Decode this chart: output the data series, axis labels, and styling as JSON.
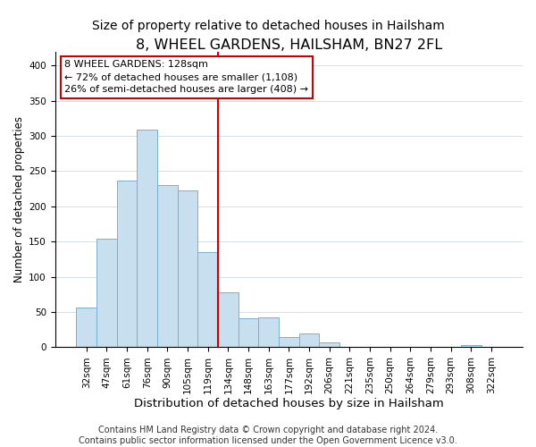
{
  "title": "8, WHEEL GARDENS, HAILSHAM, BN27 2FL",
  "subtitle": "Size of property relative to detached houses in Hailsham",
  "xlabel": "Distribution of detached houses by size in Hailsham",
  "ylabel": "Number of detached properties",
  "bar_labels": [
    "32sqm",
    "47sqm",
    "61sqm",
    "76sqm",
    "90sqm",
    "105sqm",
    "119sqm",
    "134sqm",
    "148sqm",
    "163sqm",
    "177sqm",
    "192sqm",
    "206sqm",
    "221sqm",
    "235sqm",
    "250sqm",
    "264sqm",
    "279sqm",
    "293sqm",
    "308sqm",
    "322sqm"
  ],
  "bar_heights": [
    57,
    154,
    237,
    309,
    230,
    223,
    135,
    78,
    41,
    42,
    14,
    20,
    7,
    0,
    0,
    0,
    0,
    0,
    0,
    3,
    0
  ],
  "bar_color": "#c8dff0",
  "bar_edge_color": "#7ab0d0",
  "vline_color": "#cc0000",
  "annotation_title": "8 WHEEL GARDENS: 128sqm",
  "annotation_line1": "← 72% of detached houses are smaller (1,108)",
  "annotation_line2": "26% of semi-detached houses are larger (408) →",
  "annotation_box_edge": "#cc0000",
  "ylim": [
    0,
    420
  ],
  "yticks": [
    0,
    50,
    100,
    150,
    200,
    250,
    300,
    350,
    400
  ],
  "footnote1": "Contains HM Land Registry data © Crown copyright and database right 2024.",
  "footnote2": "Contains public sector information licensed under the Open Government Licence v3.0.",
  "title_fontsize": 11.5,
  "subtitle_fontsize": 10,
  "xlabel_fontsize": 9.5,
  "ylabel_fontsize": 8.5,
  "tick_fontsize": 7.5,
  "annotation_fontsize": 8,
  "footnote_fontsize": 7
}
